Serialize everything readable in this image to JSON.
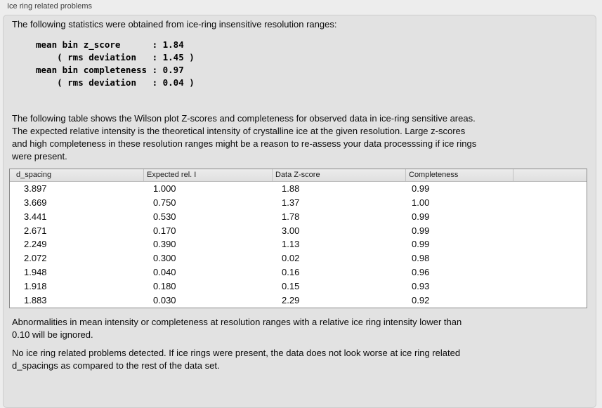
{
  "window": {
    "group_title": "Ice ring related problems"
  },
  "stats": {
    "intro": "The following statistics were obtained from ice-ring insensitive resolution ranges:",
    "mono_lines": [
      "mean bin z_score      : 1.84",
      "    ( rms deviation   : 1.45 )",
      "mean bin completeness : 0.97",
      "    ( rms deviation   : 0.04 )"
    ]
  },
  "table_description_lines": [
    "The following table shows the Wilson plot Z-scores and completeness for observed data in ice-ring sensitive areas.",
    "The expected relative intensity is the theoretical intensity of crystalline ice at the given resolution. Large z-scores",
    "and high completeness in these resolution ranges might be a reason to re-assess your data processsing if ice rings",
    "were present."
  ],
  "table": {
    "columns": [
      "d_spacing",
      "Expected rel. I",
      "Data Z-score",
      "Completeness",
      ""
    ],
    "rows": [
      [
        "3.897",
        "1.000",
        "1.88",
        "0.99"
      ],
      [
        "3.669",
        "0.750",
        "1.37",
        "1.00"
      ],
      [
        "3.441",
        "0.530",
        "1.78",
        "0.99"
      ],
      [
        "2.671",
        "0.170",
        "3.00",
        "0.99"
      ],
      [
        "2.249",
        "0.390",
        "1.13",
        "0.99"
      ],
      [
        "2.072",
        "0.300",
        "0.02",
        "0.98"
      ],
      [
        "1.948",
        "0.040",
        "0.16",
        "0.96"
      ],
      [
        "1.918",
        "0.180",
        "0.15",
        "0.93"
      ],
      [
        "1.883",
        "0.030",
        "2.29",
        "0.92"
      ]
    ]
  },
  "notes": {
    "ignore_lines": [
      "Abnormalities in mean intensity or completeness at resolution ranges with a relative ice ring intensity lower than",
      "0.10 will be ignored."
    ],
    "conclusion_lines": [
      "No ice ring related problems detected. If ice rings were present, the data does not look worse at ice ring related",
      "d_spacings as compared to the rest of the data set."
    ]
  },
  "colors": {
    "page_background": "#ededed",
    "panel_background": "#e2e2e2",
    "table_background": "#ffffff",
    "table_border": "#8a8a8a",
    "header_background": "#e4e4e4",
    "text": "#0b0b0b"
  }
}
